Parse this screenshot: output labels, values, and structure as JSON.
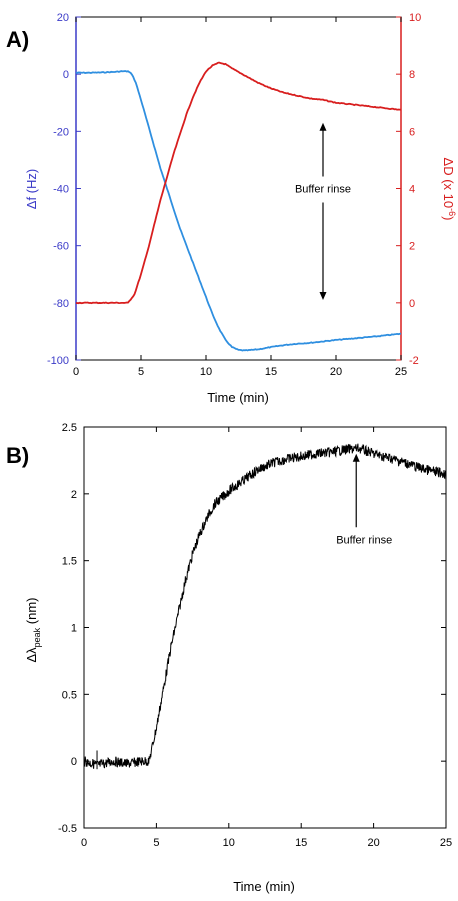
{
  "chart_data": [
    {
      "panel_label": "A)",
      "type": "line",
      "xlabel": "Time (min)",
      "xlim": [
        0,
        25
      ],
      "xticks": [
        0,
        5,
        10,
        15,
        20,
        25
      ],
      "y_left": {
        "label": "Δf (Hz)",
        "color": "#3b3bc8",
        "lim": [
          -100,
          20
        ],
        "ticks": [
          -100,
          -80,
          -60,
          -40,
          -20,
          0,
          20
        ]
      },
      "y_right": {
        "label": "ΔD (x 10",
        "label_sup": "-6",
        "label_end": ")",
        "color": "#d81e1e",
        "lim": [
          -2,
          10
        ],
        "ticks": [
          -2,
          0,
          2,
          4,
          6,
          8,
          10
        ]
      },
      "series": [
        {
          "axis": "left",
          "color": "#2f8fe0",
          "x": [
            0,
            1,
            2,
            3,
            3.5,
            4,
            4.3,
            4.6,
            5,
            5.5,
            6,
            6.5,
            7,
            7.5,
            8,
            8.5,
            9,
            9.5,
            10,
            10.5,
            11,
            11.5,
            12,
            12.5,
            13,
            14,
            15,
            16,
            17,
            18,
            19,
            20,
            21,
            22,
            23,
            24,
            25
          ],
          "y": [
            0.5,
            0.5,
            0.6,
            0.8,
            1,
            1,
            0,
            -3,
            -9,
            -17,
            -25,
            -33,
            -40,
            -47,
            -54,
            -60,
            -66,
            -72,
            -78,
            -84,
            -89,
            -93,
            -95.5,
            -96.5,
            -96.7,
            -96.3,
            -95.5,
            -94.8,
            -94.3,
            -94,
            -93.5,
            -93,
            -92.6,
            -92.2,
            -91.8,
            -91.3,
            -90.8
          ]
        },
        {
          "axis": "right",
          "color": "#d81e1e",
          "x": [
            0,
            1,
            2,
            3,
            4,
            4.5,
            5,
            5.5,
            6,
            6.5,
            7,
            7.5,
            8,
            8.5,
            9,
            9.5,
            10,
            10.5,
            11,
            11.5,
            12,
            13,
            14,
            15,
            16,
            17,
            18,
            19,
            20,
            21,
            22,
            23,
            24,
            25
          ],
          "y": [
            0,
            0,
            0,
            0,
            0,
            0.3,
            1,
            1.8,
            2.7,
            3.6,
            4.4,
            5.2,
            5.9,
            6.6,
            7.2,
            7.7,
            8.1,
            8.3,
            8.4,
            8.35,
            8.2,
            7.95,
            7.7,
            7.5,
            7.35,
            7.25,
            7.15,
            7.1,
            7,
            6.95,
            6.9,
            6.85,
            6.8,
            6.75
          ]
        }
      ],
      "annotation": {
        "text": "Buffer rinse",
        "x": 19,
        "arrow_up_to": 6.3,
        "arrow_down_to": 0.1
      }
    },
    {
      "panel_label": "B)",
      "type": "line",
      "xlabel": "Time (min)",
      "xlim": [
        0,
        25
      ],
      "xticks": [
        0,
        5,
        10,
        15,
        20,
        25
      ],
      "ylabel": "Δλ",
      "ylabel_sub": "peak",
      "ylabel_end": " (nm)",
      "ylim": [
        -0.5,
        2.5
      ],
      "yticks": [
        -0.5,
        0,
        0.5,
        1,
        1.5,
        2,
        2.5
      ],
      "series": [
        {
          "color": "#000000",
          "x": [
            0,
            1,
            2,
            3,
            4,
            4.5,
            5,
            5.5,
            6,
            6.5,
            7,
            7.5,
            8,
            8.5,
            9,
            9.5,
            10,
            11,
            12,
            13,
            14,
            15,
            16,
            17,
            18,
            19,
            20,
            21,
            22,
            23,
            24,
            25
          ],
          "y": [
            0,
            -0.03,
            0,
            -0.02,
            0,
            0,
            0.25,
            0.55,
            0.85,
            1.1,
            1.35,
            1.55,
            1.7,
            1.82,
            1.92,
            1.97,
            2.02,
            2.1,
            2.18,
            2.23,
            2.26,
            2.28,
            2.3,
            2.31,
            2.33,
            2.34,
            2.3,
            2.27,
            2.24,
            2.2,
            2.17,
            2.15
          ]
        }
      ],
      "annotation": {
        "text": "Buffer rinse",
        "x": 18.8,
        "arrow_from": 1.75,
        "arrow_to": 2.33
      }
    }
  ]
}
